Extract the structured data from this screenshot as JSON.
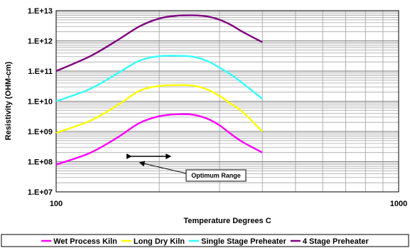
{
  "chart_data": {
    "type": "line",
    "xlabel": "Temperature Degrees C",
    "ylabel": "Resistivity (OHM-cm)",
    "x_scale": "log",
    "y_scale": "log",
    "xlim": [
      100,
      1000
    ],
    "ylim": [
      10000000,
      10000000000000
    ],
    "x_ticks": [
      100,
      1000
    ],
    "x_tick_labels": [
      "100",
      "1000"
    ],
    "y_ticks": [
      10000000,
      100000000,
      1000000000,
      10000000000,
      100000000000,
      1000000000000,
      10000000000000
    ],
    "y_tick_labels": [
      "1.E+07",
      "1.E+08",
      "1.E+09",
      "1.E+10",
      "1.E+11",
      "1.E+12",
      "1.E+13"
    ],
    "grid": true,
    "legend_position": "bottom",
    "series": [
      {
        "name": "Wet Process Kiln",
        "color": "#ff00ff",
        "x": [
          100,
          125,
          150,
          175,
          200,
          225,
          250,
          275,
          300,
          325,
          350,
          400
        ],
        "y": [
          80000000,
          190000000,
          600000000,
          1900000000,
          3200000000,
          3700000000,
          3600000000,
          2700000000,
          1600000000,
          800000000,
          450000000,
          200000000
        ]
      },
      {
        "name": "Long Dry Kiln",
        "color": "#ffff00",
        "x": [
          100,
          125,
          150,
          175,
          200,
          225,
          250,
          275,
          300,
          325,
          350,
          400
        ],
        "y": [
          900000000,
          2200000000,
          7000000000,
          22000000000,
          32000000000,
          34000000000,
          33000000000,
          25000000000,
          15000000000,
          8000000000,
          4500000000,
          1000000000
        ]
      },
      {
        "name": "Single Stage Preheater",
        "color": "#33ffff",
        "x": [
          100,
          125,
          150,
          175,
          200,
          225,
          250,
          275,
          300,
          325,
          350,
          400
        ],
        "y": [
          10000000000,
          25000000000,
          80000000000,
          220000000000,
          310000000000,
          320000000000,
          300000000000,
          220000000000,
          130000000000,
          75000000000,
          40000000000,
          12000000000
        ]
      },
      {
        "name": "4 Stage Preheater",
        "color": "#800080",
        "x": [
          100,
          125,
          150,
          175,
          200,
          225,
          250,
          275,
          300,
          325,
          350,
          400
        ],
        "y": [
          100000000000,
          300000000000,
          1000000000000,
          3000000000000,
          5500000000000,
          6800000000000,
          7000000000000,
          6500000000000,
          5000000000000,
          3300000000000,
          2000000000000,
          900000000000
        ]
      }
    ],
    "annotations": [
      {
        "text": "Optimum Range",
        "range_x": [
          165,
          215
        ],
        "y": 150000000
      }
    ]
  }
}
